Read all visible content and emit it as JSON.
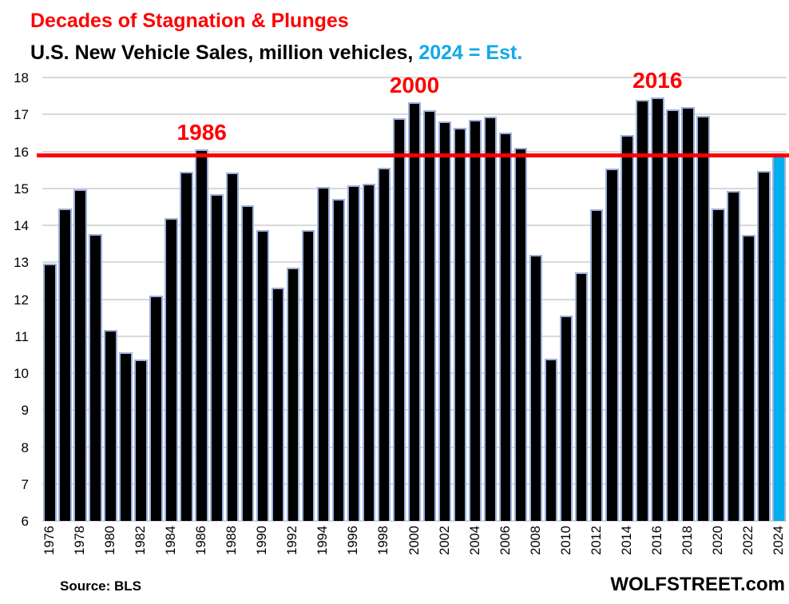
{
  "header": {
    "title": "Decades of Stagnation & Plunges",
    "subtitle_plain": "U.S. New Vehicle Sales, million vehicles, ",
    "subtitle_highlight": "2024 = Est."
  },
  "footer": {
    "source": "Source: BLS",
    "brand": "WOLFSTREET.com"
  },
  "colors": {
    "title_red": "#FF0000",
    "highlight_cyan": "#12A9E8",
    "bar_fill": "#000000",
    "bar_border": "#9DB0D9",
    "est_bar_fill": "#00AEEF",
    "gridline_gray": "#D9D9D9",
    "reference_line_red": "#FF0000",
    "annotation_red": "#FF0000"
  },
  "chart_data": {
    "type": "bar",
    "title": "Decades of Stagnation & Plunges",
    "subtitle": "U.S. New Vehicle Sales, million vehicles, 2024 = Est.",
    "xlabel": "",
    "ylabel": "million vehicles",
    "ylim": [
      6,
      18
    ],
    "y_ticks": [
      6,
      7,
      8,
      9,
      10,
      11,
      12,
      13,
      14,
      15,
      16,
      17,
      18
    ],
    "x_tick_step": 2,
    "grid": "horizontal",
    "legend": "none",
    "reference_line_value": 15.9,
    "estimate_year": 2024,
    "x": [
      1976,
      1977,
      1978,
      1979,
      1980,
      1981,
      1982,
      1983,
      1984,
      1985,
      1986,
      1987,
      1988,
      1989,
      1990,
      1991,
      1992,
      1993,
      1994,
      1995,
      1996,
      1997,
      1998,
      1999,
      2000,
      2001,
      2002,
      2003,
      2004,
      2005,
      2006,
      2007,
      2008,
      2009,
      2010,
      2011,
      2012,
      2013,
      2014,
      2015,
      2016,
      2017,
      2018,
      2019,
      2020,
      2021,
      2022,
      2023,
      2024
    ],
    "values": [
      12.96,
      14.45,
      14.97,
      13.77,
      11.16,
      10.57,
      10.36,
      12.09,
      14.2,
      15.44,
      16.05,
      14.85,
      15.43,
      14.53,
      13.86,
      12.31,
      12.86,
      13.88,
      15.03,
      14.72,
      15.09,
      15.12,
      15.55,
      16.89,
      17.34,
      17.12,
      16.81,
      16.64,
      16.86,
      16.95,
      16.5,
      16.09,
      13.19,
      10.4,
      11.55,
      12.73,
      14.43,
      15.53,
      16.45,
      17.4,
      17.46,
      17.14,
      17.21,
      16.97,
      14.46,
      14.93,
      13.73,
      15.46,
      15.9
    ],
    "annotations": [
      {
        "label": "1986",
        "year": 1986
      },
      {
        "label": "2000",
        "year": 2000
      },
      {
        "label": "2016",
        "year": 2016
      }
    ]
  }
}
